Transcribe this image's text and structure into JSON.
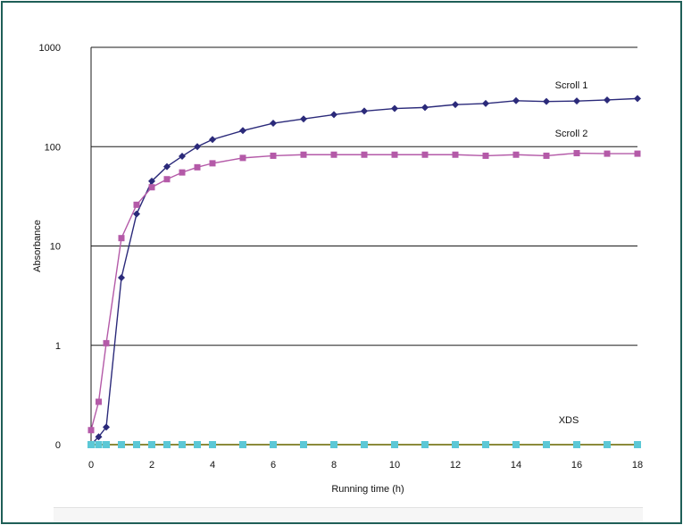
{
  "chart_data": {
    "type": "line",
    "xlabel": "Running time (h)",
    "ylabel": "Absorbance",
    "xlim": [
      0,
      18
    ],
    "x_ticks": [
      0,
      2,
      4,
      6,
      8,
      10,
      12,
      14,
      16,
      18
    ],
    "y_scale": "log",
    "y_ticks": [
      {
        "label": "0",
        "value": 0.1
      },
      {
        "label": "1",
        "value": 1
      },
      {
        "label": "10",
        "value": 10
      },
      {
        "label": "100",
        "value": 100
      },
      {
        "label": "1000",
        "value": 1000
      }
    ],
    "grid": "horizontal",
    "series": [
      {
        "name": "Scroll 1",
        "color": "#2b2a7a",
        "marker": "diamond",
        "x": [
          0,
          0.25,
          0.5,
          1,
          1.5,
          2,
          2.5,
          3,
          3.5,
          4,
          5,
          6,
          7,
          8,
          9,
          10,
          11,
          12,
          13,
          14,
          15,
          16,
          17,
          18
        ],
        "y": [
          0.1,
          0.12,
          0.15,
          4.8,
          21,
          45,
          63,
          80,
          100,
          118,
          145,
          172,
          190,
          210,
          228,
          242,
          248,
          265,
          272,
          290,
          285,
          288,
          295,
          305
        ]
      },
      {
        "name": "Scroll 2",
        "color": "#b45aa8",
        "marker": "square",
        "x": [
          0,
          0.25,
          0.5,
          1,
          1.5,
          2,
          2.5,
          3,
          3.5,
          4,
          5,
          6,
          7,
          8,
          9,
          10,
          11,
          12,
          13,
          14,
          15,
          16,
          17,
          18
        ],
        "y": [
          0.14,
          0.27,
          1.05,
          12,
          26,
          39,
          47,
          55,
          62,
          68,
          77,
          81,
          83,
          83,
          83,
          83,
          83,
          83,
          81,
          83,
          81,
          86,
          85,
          85
        ]
      },
      {
        "name": "XDS",
        "color": "#5cc8d6",
        "marker": "square",
        "x": [
          0,
          0.25,
          0.5,
          1,
          1.5,
          2,
          2.5,
          3,
          3.5,
          4,
          5,
          6,
          7,
          8,
          9,
          10,
          11,
          12,
          13,
          14,
          15,
          16,
          17,
          18
        ],
        "y": [
          0.1,
          0.1,
          0.1,
          0.1,
          0.1,
          0.1,
          0.1,
          0.1,
          0.1,
          0.1,
          0.1,
          0.1,
          0.1,
          0.1,
          0.1,
          0.1,
          0.1,
          0.1,
          0.1,
          0.1,
          0.1,
          0.1,
          0.1,
          0.1
        ]
      }
    ],
    "xds_line_color": "#8b8a3a"
  }
}
